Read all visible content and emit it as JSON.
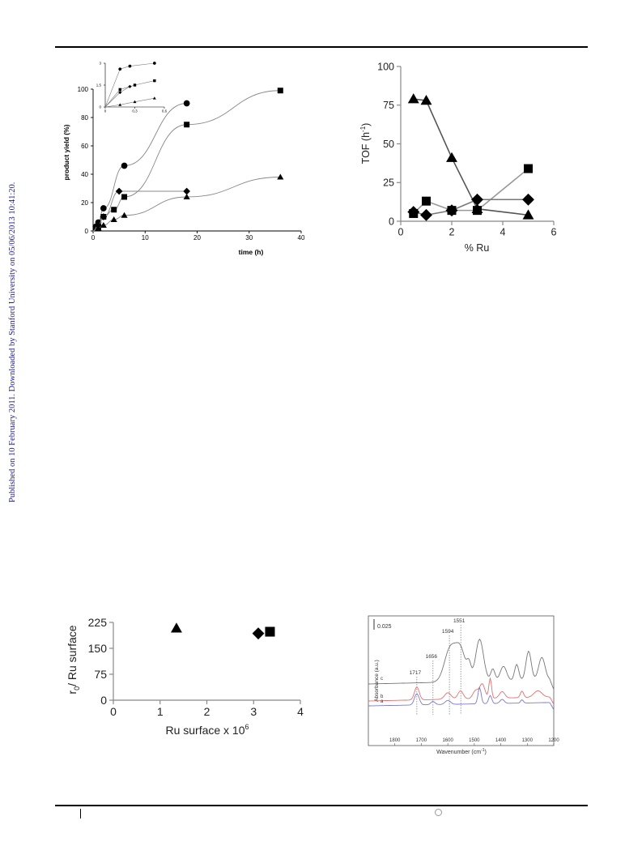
{
  "sidebar_text": "Published on 10 February 2011. Downloaded by Stanford University on 05/06/2013 10:41:20.",
  "chart_data": [
    {
      "type": "scatter",
      "id": "yield",
      "xlabel": "time (h)",
      "ylabel": "product yield (%)",
      "xlim": [
        0,
        40
      ],
      "ylim": [
        0,
        100
      ],
      "xticks": [
        0,
        10,
        20,
        30,
        40
      ],
      "yticks": [
        0,
        20,
        40,
        60,
        80,
        100
      ],
      "grid": false,
      "series": [
        {
          "marker": "circle",
          "x": [
            0.5,
            1,
            2,
            6,
            18
          ],
          "y": [
            3,
            6,
            16,
            46,
            90
          ]
        },
        {
          "marker": "square",
          "x": [
            0.5,
            1,
            2,
            4,
            6,
            18,
            36
          ],
          "y": [
            2,
            3,
            10,
            15,
            24,
            75,
            99
          ]
        },
        {
          "marker": "diamond",
          "x": [
            1,
            2,
            5,
            18
          ],
          "y": [
            4,
            10,
            28,
            28
          ]
        },
        {
          "marker": "triangle",
          "x": [
            1,
            2,
            4,
            6,
            18,
            36
          ],
          "y": [
            2,
            4,
            8,
            11,
            24,
            38
          ]
        }
      ],
      "inset": {
        "xticks": [
          0,
          0.3,
          0.6
        ],
        "xtick_labels": [
          "0",
          "0,3",
          "0,6"
        ],
        "yticks": [
          0,
          1.5,
          3
        ],
        "ytick_labels": [
          "0",
          "1,5",
          "3"
        ],
        "xlim": [
          0,
          0.6
        ],
        "ylim": [
          0,
          3
        ],
        "series": [
          {
            "marker": "circle",
            "x": [
              0,
              0.15,
              0.25,
              0.5
            ],
            "y": [
              0,
              2.6,
              2.8,
              3.0
            ]
          },
          {
            "marker": "square",
            "x": [
              0,
              0.15,
              0.3,
              0.5
            ],
            "y": [
              0,
              1.2,
              1.5,
              1.8
            ]
          },
          {
            "marker": "diamond",
            "x": [
              0,
              0.15,
              0.25
            ],
            "y": [
              0,
              1.0,
              1.4
            ]
          },
          {
            "marker": "triangle",
            "x": [
              0,
              0.15,
              0.3,
              0.5
            ],
            "y": [
              0,
              0.15,
              0.35,
              0.6
            ]
          }
        ]
      }
    },
    {
      "type": "line",
      "id": "tof",
      "xlabel": "% Ru",
      "ylabel": "TOF (h-1)",
      "ylabel_main": "TOF (h",
      "ylabel_sup": "-1",
      "ylabel_end": ")",
      "xlim": [
        0,
        6
      ],
      "ylim": [
        0,
        100
      ],
      "xticks": [
        0,
        2,
        4,
        6
      ],
      "yticks": [
        0,
        25,
        50,
        75,
        100
      ],
      "grid": false,
      "series": [
        {
          "marker": "triangle",
          "color": "#555555",
          "x": [
            0.5,
            1,
            2,
            3,
            5
          ],
          "y": [
            79,
            78,
            41,
            8,
            4
          ]
        },
        {
          "marker": "square",
          "color": "#999999",
          "x": [
            0.5,
            1,
            2,
            3,
            5
          ],
          "y": [
            5,
            13,
            7,
            7,
            34
          ]
        },
        {
          "marker": "diamond",
          "color": "#777777",
          "x": [
            0.5,
            1,
            2,
            3,
            5
          ],
          "y": [
            6,
            4,
            7,
            14,
            14
          ]
        }
      ]
    },
    {
      "type": "scatter",
      "id": "r0",
      "xlabel_main": "Ru surface x 10",
      "xlabel_sup": "6",
      "ylabel_main": "r",
      "ylabel_sub": "0",
      "ylabel_end": "/ Ru surface",
      "xlim": [
        0,
        4
      ],
      "ylim": [
        0,
        225
      ],
      "xticks": [
        0,
        1,
        2,
        3,
        4
      ],
      "yticks": [
        0,
        75,
        150,
        225
      ],
      "grid": false,
      "series": [
        {
          "marker": "triangle",
          "x": [
            1.35
          ],
          "y": [
            208
          ]
        },
        {
          "marker": "diamond",
          "x": [
            3.1
          ],
          "y": [
            193
          ]
        },
        {
          "marker": "square",
          "x": [
            3.35
          ],
          "y": [
            198
          ]
        }
      ]
    },
    {
      "type": "line",
      "id": "ir",
      "xlabel_main": "Wavenumber (cm",
      "xlabel_sup": "-1",
      "xlabel_end": ")",
      "ylabel": "Absorbance (a.u.)",
      "xlim": [
        1900,
        1200
      ],
      "xticks": [
        1800,
        1700,
        1600,
        1500,
        1400,
        1300,
        1200
      ],
      "scale_bar_label": "0.025",
      "peak_labels": [
        {
          "label": "1717",
          "x": 1717
        },
        {
          "label": "1656",
          "x": 1656
        },
        {
          "label": "1594",
          "x": 1594
        },
        {
          "label": "1551",
          "x": 1551
        }
      ],
      "series": [
        {
          "name": "c",
          "color": "#777777"
        },
        {
          "name": "b",
          "color": "#e07070"
        },
        {
          "name": "a",
          "color": "#7a7acc"
        }
      ]
    }
  ]
}
